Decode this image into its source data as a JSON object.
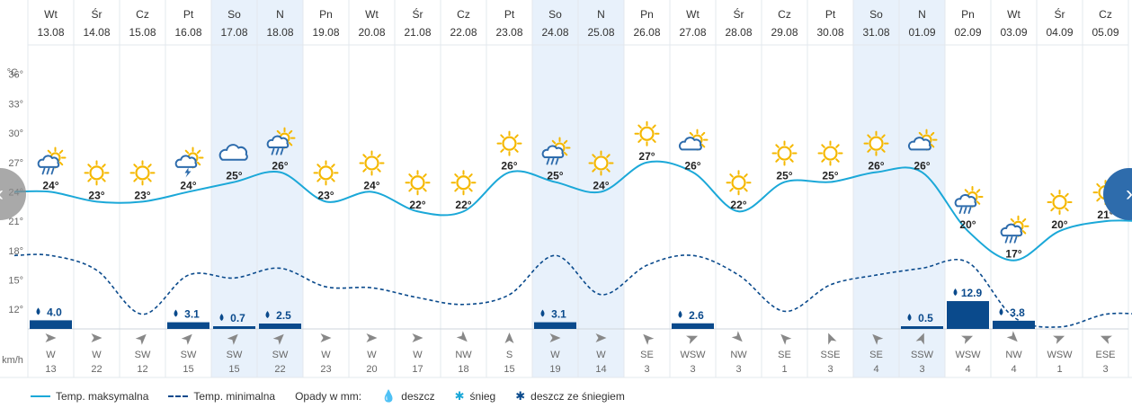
{
  "chart_data": {
    "type": "line",
    "y_unit": "°C",
    "y_ticks": [
      12,
      15,
      18,
      21,
      24,
      27,
      30,
      33,
      36
    ],
    "ylim": [
      10,
      39
    ],
    "wind_unit": "km/h",
    "days": [
      {
        "dow": "Wt",
        "date": "13.08",
        "max": 24,
        "min": 17.5,
        "icon": "sun-cloud-rain",
        "precip": 4.0,
        "wind_dir": "W",
        "wind": 13,
        "weekend": false
      },
      {
        "dow": "Śr",
        "date": "14.08",
        "max": 23,
        "min": 16,
        "icon": "sun",
        "precip": null,
        "wind_dir": "W",
        "wind": 22,
        "weekend": false
      },
      {
        "dow": "Cz",
        "date": "15.08",
        "max": 23,
        "min": 11.5,
        "icon": "sun",
        "precip": null,
        "wind_dir": "SW",
        "wind": 12,
        "weekend": false
      },
      {
        "dow": "Pt",
        "date": "16.08",
        "max": 24,
        "min": 15.5,
        "icon": "sun-cloud-storm",
        "precip": 3.1,
        "wind_dir": "SW",
        "wind": 15,
        "weekend": false
      },
      {
        "dow": "So",
        "date": "17.08",
        "max": 25,
        "min": 15.2,
        "icon": "cloud",
        "precip": 0.7,
        "wind_dir": "SW",
        "wind": 15,
        "weekend": true
      },
      {
        "dow": "N",
        "date": "18.08",
        "max": 26,
        "min": 16.2,
        "icon": "sun-cloud-rain",
        "precip": 2.5,
        "wind_dir": "SW",
        "wind": 22,
        "weekend": true
      },
      {
        "dow": "Pn",
        "date": "19.08",
        "max": 23,
        "min": 14.3,
        "icon": "sun",
        "precip": null,
        "wind_dir": "W",
        "wind": 23,
        "weekend": false
      },
      {
        "dow": "Wt",
        "date": "20.08",
        "max": 24,
        "min": 14.2,
        "icon": "sun",
        "precip": null,
        "wind_dir": "W",
        "wind": 20,
        "weekend": false
      },
      {
        "dow": "Śr",
        "date": "21.08",
        "max": 22,
        "min": 13.2,
        "icon": "sun",
        "precip": null,
        "wind_dir": "W",
        "wind": 17,
        "weekend": false
      },
      {
        "dow": "Cz",
        "date": "22.08",
        "max": 22,
        "min": 12.5,
        "icon": "sun",
        "precip": null,
        "wind_dir": "NW",
        "wind": 18,
        "weekend": false
      },
      {
        "dow": "Pt",
        "date": "23.08",
        "max": 26,
        "min": 13.5,
        "icon": "sun",
        "precip": null,
        "wind_dir": "S",
        "wind": 15,
        "weekend": false
      },
      {
        "dow": "So",
        "date": "24.08",
        "max": 25,
        "min": 17.5,
        "icon": "sun-cloud-rain",
        "precip": 3.1,
        "wind_dir": "W",
        "wind": 19,
        "weekend": true
      },
      {
        "dow": "N",
        "date": "25.08",
        "max": 24,
        "min": 13.5,
        "icon": "sun",
        "precip": null,
        "wind_dir": "W",
        "wind": 14,
        "weekend": true
      },
      {
        "dow": "Pn",
        "date": "26.08",
        "max": 27,
        "min": 16.5,
        "icon": "sun",
        "precip": null,
        "wind_dir": "SE",
        "wind": 3,
        "weekend": false
      },
      {
        "dow": "Wt",
        "date": "27.08",
        "max": 26,
        "min": 17.5,
        "icon": "sun-cloud",
        "precip": 2.6,
        "wind_dir": "WSW",
        "wind": 3,
        "weekend": false
      },
      {
        "dow": "Śr",
        "date": "28.08",
        "max": 22,
        "min": 15.5,
        "icon": "sun",
        "precip": null,
        "wind_dir": "NW",
        "wind": 3,
        "weekend": false
      },
      {
        "dow": "Cz",
        "date": "29.08",
        "max": 25,
        "min": 11.8,
        "icon": "sun",
        "precip": null,
        "wind_dir": "SE",
        "wind": 1,
        "weekend": false
      },
      {
        "dow": "Pt",
        "date": "30.08",
        "max": 25,
        "min": 14.5,
        "icon": "sun",
        "precip": null,
        "wind_dir": "SSE",
        "wind": 3,
        "weekend": false
      },
      {
        "dow": "So",
        "date": "31.08",
        "max": 26,
        "min": 15.5,
        "icon": "sun",
        "precip": null,
        "wind_dir": "SE",
        "wind": 4,
        "weekend": true
      },
      {
        "dow": "N",
        "date": "01.09",
        "max": 26,
        "min": 16.2,
        "icon": "sun-cloud",
        "precip": 0.5,
        "wind_dir": "SSW",
        "wind": 3,
        "weekend": true
      },
      {
        "dow": "Pn",
        "date": "02.09",
        "max": 20,
        "min": 16.8,
        "icon": "sun-cloud-rain",
        "precip": 12.9,
        "wind_dir": "WSW",
        "wind": 4,
        "weekend": false
      },
      {
        "dow": "Wt",
        "date": "03.09",
        "max": 17,
        "min": 11.2,
        "icon": "sun-cloud-rain",
        "precip": 3.8,
        "wind_dir": "NW",
        "wind": 4,
        "weekend": false
      },
      {
        "dow": "Śr",
        "date": "04.09",
        "max": 20,
        "min": 10.2,
        "icon": "sun",
        "precip": null,
        "wind_dir": "WSW",
        "wind": 1,
        "weekend": false
      },
      {
        "dow": "Cz",
        "date": "05.09",
        "max": 21,
        "min": 11.5,
        "icon": "sun",
        "precip": null,
        "wind_dir": "ESE",
        "wind": 3,
        "weekend": false
      }
    ]
  },
  "legend": {
    "max_label": "Temp. maksymalna",
    "min_label": "Temp. minimalna",
    "precip_label": "Opady w mm:",
    "rain": "deszcz",
    "snow": "śnieg",
    "sleet": "deszcz ze śniegiem"
  },
  "nav": {
    "prev": "‹",
    "next": "›"
  },
  "colors": {
    "max_line": "#1ba8d8",
    "min_line": "#0a4a8c",
    "bar": "#0a4a8c",
    "weekend": "#e8f1fb",
    "sun": "#f5b800",
    "cloud": "#2e6cac",
    "grid": "#e3e8ee"
  }
}
